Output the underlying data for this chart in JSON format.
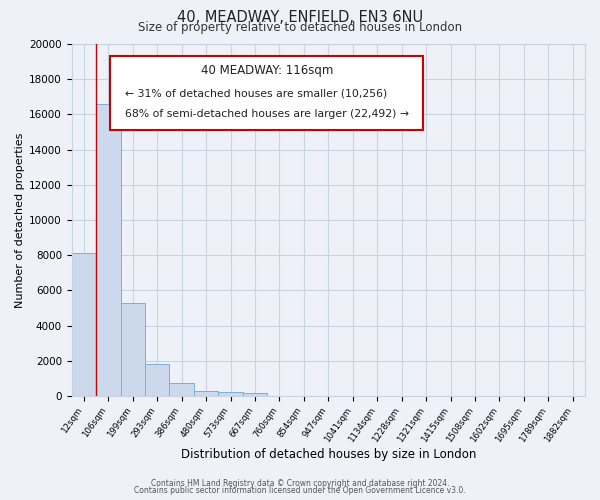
{
  "title": "40, MEADWAY, ENFIELD, EN3 6NU",
  "subtitle": "Size of property relative to detached houses in London",
  "xlabel": "Distribution of detached houses by size in London",
  "ylabel": "Number of detached properties",
  "bar_color": "#ccd9ec",
  "bar_edge_color": "#7bafd4",
  "grid_color": "#c8d4e4",
  "background_color": "#eef2f8",
  "annotation_box_color": "#ffffff",
  "annotation_box_edge": "#cc0000",
  "vline_color": "#cc0000",
  "vline_x": 0.5,
  "annotation_title": "40 MEADWAY: 116sqm",
  "annotation_line1": "← 31% of detached houses are smaller (10,256)",
  "annotation_line2": "68% of semi-detached houses are larger (22,492) →",
  "footer_line1": "Contains HM Land Registry data © Crown copyright and database right 2024.",
  "footer_line2": "Contains public sector information licensed under the Open Government Licence v3.0.",
  "bin_labels": [
    "12sqm",
    "106sqm",
    "199sqm",
    "293sqm",
    "386sqm",
    "480sqm",
    "573sqm",
    "667sqm",
    "760sqm",
    "854sqm",
    "947sqm",
    "1041sqm",
    "1134sqm",
    "1228sqm",
    "1321sqm",
    "1415sqm",
    "1508sqm",
    "1602sqm",
    "1695sqm",
    "1789sqm",
    "1882sqm"
  ],
  "bar_heights": [
    8100,
    16600,
    5300,
    1800,
    750,
    300,
    200,
    175,
    0,
    0,
    0,
    0,
    0,
    0,
    0,
    0,
    0,
    0,
    0,
    0,
    0
  ],
  "ylim": [
    0,
    20000
  ],
  "yticks": [
    0,
    2000,
    4000,
    6000,
    8000,
    10000,
    12000,
    14000,
    16000,
    18000,
    20000
  ]
}
